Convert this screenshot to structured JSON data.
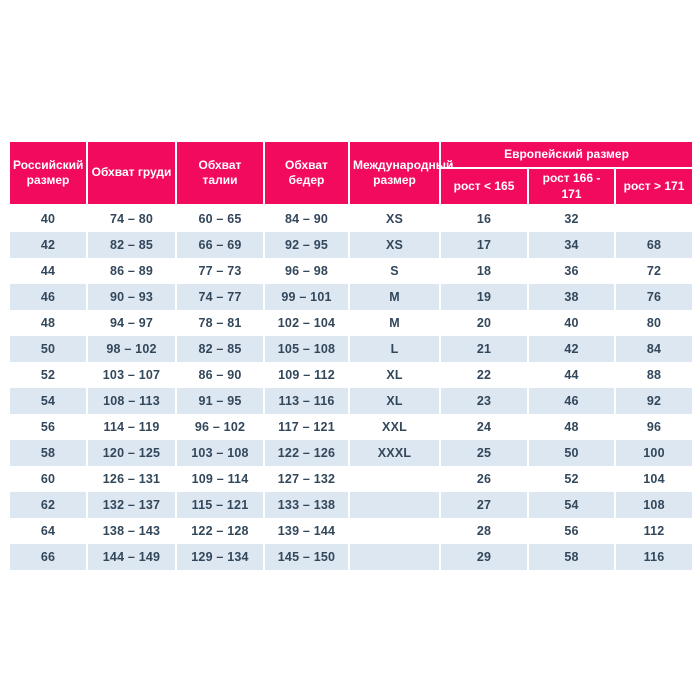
{
  "colors": {
    "header_bg": "#F20A5E",
    "header_text": "#FFFFFF",
    "row_alt_bg": "#DDE7F2",
    "cell_text": "#33475B",
    "page_bg": "#FFFFFF"
  },
  "chart_data": {
    "type": "table",
    "title": "",
    "headers": {
      "russian_size": "Российский размер",
      "chest": "Обхват груди",
      "waist": "Обхват талии",
      "hips": "Обхват бедер",
      "international_size": "Международный размер",
      "european_group": "Европейский размер",
      "sub_height_lt_165": "рост < 165",
      "sub_height_166_171": "рост 166 - 171",
      "sub_height_gt_171": "рост > 171"
    },
    "rows": [
      [
        "40",
        "74 – 80",
        "60 – 65",
        "84 – 90",
        "XS",
        "16",
        "32",
        ""
      ],
      [
        "42",
        "82 – 85",
        "66 – 69",
        "92 – 95",
        "XS",
        "17",
        "34",
        "68"
      ],
      [
        "44",
        "86 – 89",
        "77 – 73",
        "96 – 98",
        "S",
        "18",
        "36",
        "72"
      ],
      [
        "46",
        "90 – 93",
        "74 – 77",
        "99 – 101",
        "M",
        "19",
        "38",
        "76"
      ],
      [
        "48",
        "94 – 97",
        "78 – 81",
        "102 – 104",
        "M",
        "20",
        "40",
        "80"
      ],
      [
        "50",
        "98 – 102",
        "82 – 85",
        "105 – 108",
        "L",
        "21",
        "42",
        "84"
      ],
      [
        "52",
        "103 – 107",
        "86 – 90",
        "109 – 112",
        "XL",
        "22",
        "44",
        "88"
      ],
      [
        "54",
        "108 – 113",
        "91 – 95",
        "113 – 116",
        "XL",
        "23",
        "46",
        "92"
      ],
      [
        "56",
        "114 – 119",
        "96 – 102",
        "117 – 121",
        "XXL",
        "24",
        "48",
        "96"
      ],
      [
        "58",
        "120 – 125",
        "103 – 108",
        "122 – 126",
        "XXXL",
        "25",
        "50",
        "100"
      ],
      [
        "60",
        "126 – 131",
        "109 – 114",
        "127 – 132",
        "",
        "26",
        "52",
        "104"
      ],
      [
        "62",
        "132 – 137",
        "115 – 121",
        "133 – 138",
        "",
        "27",
        "54",
        "108"
      ],
      [
        "64",
        "138 – 143",
        "122 – 128",
        "139 – 144",
        "",
        "28",
        "56",
        "112"
      ],
      [
        "66",
        "144 – 149",
        "129 – 134",
        "145 – 150",
        "",
        "29",
        "58",
        "116"
      ]
    ]
  }
}
